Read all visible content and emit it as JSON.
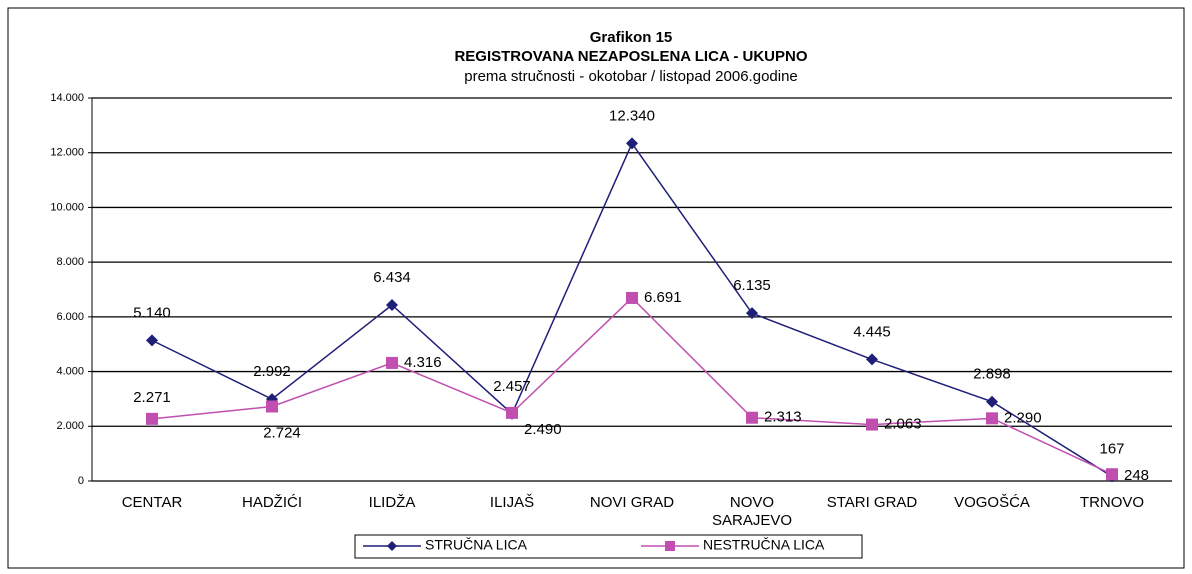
{
  "chart_data": {
    "type": "line",
    "title": "Grafikon 15",
    "subtitle_bold": "REGISTROVANA NEZAPOSLENA LICA - UKUPNO",
    "subtitle": "prema stručnosti - okotobar / listopad 2006.godine",
    "categories": [
      "CENTAR",
      "HADŽIĆI",
      "ILIDŽA",
      "ILIJAŠ",
      "NOVI GRAD",
      "NOVO SARAJEVO",
      "STARI GRAD",
      "VOGOŠĆA",
      "TRNOVO"
    ],
    "series": [
      {
        "name": "STRUČNA LICA",
        "color": "#1f1f78",
        "marker": "diamond",
        "values": [
          5140,
          2992,
          6434,
          2457,
          12340,
          6135,
          4445,
          2898,
          167
        ],
        "value_labels": [
          "5.140",
          "2.992",
          "6.434",
          "2.457",
          "12.340",
          "6.135",
          "4.445",
          "2.898",
          "167"
        ]
      },
      {
        "name": "NESTRUČNA LICA",
        "color": "#c04fb0",
        "marker": "square",
        "values": [
          2271,
          2724,
          4316,
          2490,
          6691,
          2313,
          2063,
          2290,
          248
        ],
        "value_labels": [
          "2.271",
          "2.724",
          "4.316",
          "2.490",
          "6.691",
          "2.313",
          "2.063",
          "2.290",
          "248"
        ]
      }
    ],
    "ylim": [
      0,
      14000
    ],
    "yticks": [
      0,
      {
        "value": 2000,
        "label": "2.000"
      },
      {
        "value": 4000,
        "label": "4.000"
      },
      {
        "value": 6000,
        "label": "6.000"
      },
      {
        "value": 8000,
        "label": "8.000"
      },
      {
        "value": 10000,
        "label": "10.000"
      },
      {
        "value": 12000,
        "label": "12.000"
      },
      {
        "value": 14000,
        "label": "14.000"
      }
    ],
    "grid": true,
    "legend": "bottom"
  }
}
